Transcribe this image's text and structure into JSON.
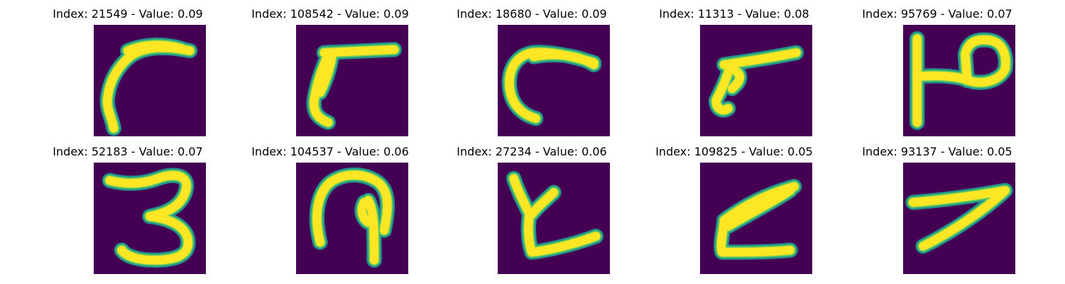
{
  "colors": {
    "background": "#440154",
    "stroke_core": "#fde725",
    "stroke_mid": "#5ec962",
    "stroke_edge": "#21918c"
  },
  "panels": [
    {
      "title": "Index: 21549 - Value: 0.09",
      "index": 21549,
      "value": 0.09,
      "glyph": "hook-left-stroke"
    },
    {
      "title": "Index: 108542 - Value: 0.09",
      "index": 108542,
      "value": 0.09,
      "glyph": "bar-with-left-descender"
    },
    {
      "title": "Index: 18680 - Value: 0.09",
      "index": 18680,
      "value": 0.09,
      "glyph": "c-curve-open"
    },
    {
      "title": "Index: 11313 - Value: 0.08",
      "index": 11313,
      "value": 0.08,
      "glyph": "slanted-bar-with-tail"
    },
    {
      "title": "Index: 95769 - Value: 0.07",
      "index": 95769,
      "value": 0.07,
      "glyph": "p-loop-with-stem"
    },
    {
      "title": "Index: 52183 - Value: 0.07",
      "index": 52183,
      "value": 0.07,
      "glyph": "digit-three"
    },
    {
      "title": "Index: 104537 - Value: 0.06",
      "index": 104537,
      "value": 0.06,
      "glyph": "arch-with-inner-stem"
    },
    {
      "title": "Index: 27234 - Value: 0.06",
      "index": 27234,
      "value": 0.06,
      "glyph": "y-branch-with-base"
    },
    {
      "title": "Index: 109825 - Value: 0.05",
      "index": 109825,
      "value": 0.05,
      "glyph": "z-diagonal-bars"
    },
    {
      "title": "Index: 93137 - Value: 0.05",
      "index": 93137,
      "value": 0.05,
      "glyph": "seven-stroke"
    }
  ]
}
